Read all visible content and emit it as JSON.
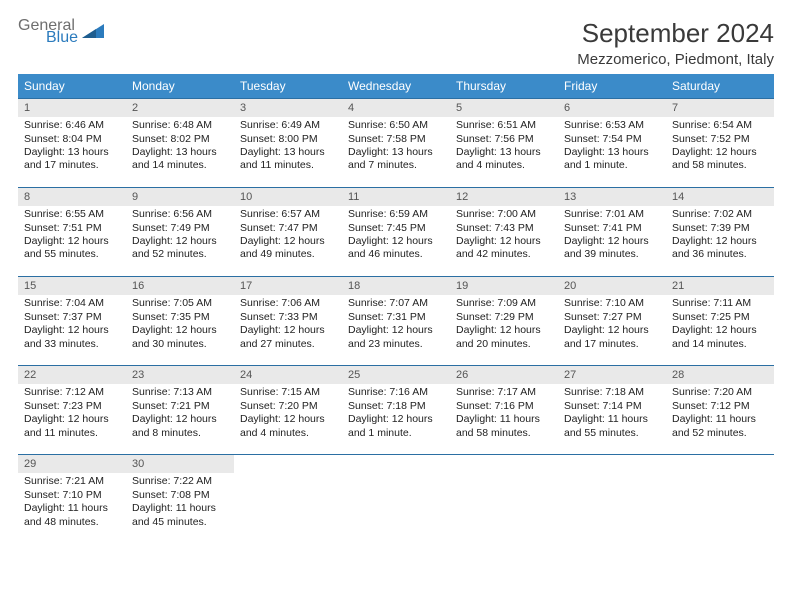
{
  "brand": {
    "word1": "General",
    "word2": "Blue"
  },
  "title": "September 2024",
  "location": "Mezzomerico, Piedmont, Italy",
  "colors": {
    "header_bg": "#3b8bc9",
    "header_text": "#ffffff",
    "daynum_bg": "#e9e9e9",
    "cell_border": "#2b6fa3",
    "logo_gray": "#6e6e6e",
    "logo_blue": "#2b7bbd",
    "page_bg": "#ffffff",
    "text": "#222222"
  },
  "weekday_labels": [
    "Sunday",
    "Monday",
    "Tuesday",
    "Wednesday",
    "Thursday",
    "Friday",
    "Saturday"
  ],
  "weeks": [
    [
      {
        "n": "1",
        "sr": "Sunrise: 6:46 AM",
        "ss": "Sunset: 8:04 PM",
        "d1": "Daylight: 13 hours",
        "d2": "and 17 minutes."
      },
      {
        "n": "2",
        "sr": "Sunrise: 6:48 AM",
        "ss": "Sunset: 8:02 PM",
        "d1": "Daylight: 13 hours",
        "d2": "and 14 minutes."
      },
      {
        "n": "3",
        "sr": "Sunrise: 6:49 AM",
        "ss": "Sunset: 8:00 PM",
        "d1": "Daylight: 13 hours",
        "d2": "and 11 minutes."
      },
      {
        "n": "4",
        "sr": "Sunrise: 6:50 AM",
        "ss": "Sunset: 7:58 PM",
        "d1": "Daylight: 13 hours",
        "d2": "and 7 minutes."
      },
      {
        "n": "5",
        "sr": "Sunrise: 6:51 AM",
        "ss": "Sunset: 7:56 PM",
        "d1": "Daylight: 13 hours",
        "d2": "and 4 minutes."
      },
      {
        "n": "6",
        "sr": "Sunrise: 6:53 AM",
        "ss": "Sunset: 7:54 PM",
        "d1": "Daylight: 13 hours",
        "d2": "and 1 minute."
      },
      {
        "n": "7",
        "sr": "Sunrise: 6:54 AM",
        "ss": "Sunset: 7:52 PM",
        "d1": "Daylight: 12 hours",
        "d2": "and 58 minutes."
      }
    ],
    [
      {
        "n": "8",
        "sr": "Sunrise: 6:55 AM",
        "ss": "Sunset: 7:51 PM",
        "d1": "Daylight: 12 hours",
        "d2": "and 55 minutes."
      },
      {
        "n": "9",
        "sr": "Sunrise: 6:56 AM",
        "ss": "Sunset: 7:49 PM",
        "d1": "Daylight: 12 hours",
        "d2": "and 52 minutes."
      },
      {
        "n": "10",
        "sr": "Sunrise: 6:57 AM",
        "ss": "Sunset: 7:47 PM",
        "d1": "Daylight: 12 hours",
        "d2": "and 49 minutes."
      },
      {
        "n": "11",
        "sr": "Sunrise: 6:59 AM",
        "ss": "Sunset: 7:45 PM",
        "d1": "Daylight: 12 hours",
        "d2": "and 46 minutes."
      },
      {
        "n": "12",
        "sr": "Sunrise: 7:00 AM",
        "ss": "Sunset: 7:43 PM",
        "d1": "Daylight: 12 hours",
        "d2": "and 42 minutes."
      },
      {
        "n": "13",
        "sr": "Sunrise: 7:01 AM",
        "ss": "Sunset: 7:41 PM",
        "d1": "Daylight: 12 hours",
        "d2": "and 39 minutes."
      },
      {
        "n": "14",
        "sr": "Sunrise: 7:02 AM",
        "ss": "Sunset: 7:39 PM",
        "d1": "Daylight: 12 hours",
        "d2": "and 36 minutes."
      }
    ],
    [
      {
        "n": "15",
        "sr": "Sunrise: 7:04 AM",
        "ss": "Sunset: 7:37 PM",
        "d1": "Daylight: 12 hours",
        "d2": "and 33 minutes."
      },
      {
        "n": "16",
        "sr": "Sunrise: 7:05 AM",
        "ss": "Sunset: 7:35 PM",
        "d1": "Daylight: 12 hours",
        "d2": "and 30 minutes."
      },
      {
        "n": "17",
        "sr": "Sunrise: 7:06 AM",
        "ss": "Sunset: 7:33 PM",
        "d1": "Daylight: 12 hours",
        "d2": "and 27 minutes."
      },
      {
        "n": "18",
        "sr": "Sunrise: 7:07 AM",
        "ss": "Sunset: 7:31 PM",
        "d1": "Daylight: 12 hours",
        "d2": "and 23 minutes."
      },
      {
        "n": "19",
        "sr": "Sunrise: 7:09 AM",
        "ss": "Sunset: 7:29 PM",
        "d1": "Daylight: 12 hours",
        "d2": "and 20 minutes."
      },
      {
        "n": "20",
        "sr": "Sunrise: 7:10 AM",
        "ss": "Sunset: 7:27 PM",
        "d1": "Daylight: 12 hours",
        "d2": "and 17 minutes."
      },
      {
        "n": "21",
        "sr": "Sunrise: 7:11 AM",
        "ss": "Sunset: 7:25 PM",
        "d1": "Daylight: 12 hours",
        "d2": "and 14 minutes."
      }
    ],
    [
      {
        "n": "22",
        "sr": "Sunrise: 7:12 AM",
        "ss": "Sunset: 7:23 PM",
        "d1": "Daylight: 12 hours",
        "d2": "and 11 minutes."
      },
      {
        "n": "23",
        "sr": "Sunrise: 7:13 AM",
        "ss": "Sunset: 7:21 PM",
        "d1": "Daylight: 12 hours",
        "d2": "and 8 minutes."
      },
      {
        "n": "24",
        "sr": "Sunrise: 7:15 AM",
        "ss": "Sunset: 7:20 PM",
        "d1": "Daylight: 12 hours",
        "d2": "and 4 minutes."
      },
      {
        "n": "25",
        "sr": "Sunrise: 7:16 AM",
        "ss": "Sunset: 7:18 PM",
        "d1": "Daylight: 12 hours",
        "d2": "and 1 minute."
      },
      {
        "n": "26",
        "sr": "Sunrise: 7:17 AM",
        "ss": "Sunset: 7:16 PM",
        "d1": "Daylight: 11 hours",
        "d2": "and 58 minutes."
      },
      {
        "n": "27",
        "sr": "Sunrise: 7:18 AM",
        "ss": "Sunset: 7:14 PM",
        "d1": "Daylight: 11 hours",
        "d2": "and 55 minutes."
      },
      {
        "n": "28",
        "sr": "Sunrise: 7:20 AM",
        "ss": "Sunset: 7:12 PM",
        "d1": "Daylight: 11 hours",
        "d2": "and 52 minutes."
      }
    ],
    [
      {
        "n": "29",
        "sr": "Sunrise: 7:21 AM",
        "ss": "Sunset: 7:10 PM",
        "d1": "Daylight: 11 hours",
        "d2": "and 48 minutes."
      },
      {
        "n": "30",
        "sr": "Sunrise: 7:22 AM",
        "ss": "Sunset: 7:08 PM",
        "d1": "Daylight: 11 hours",
        "d2": "and 45 minutes."
      },
      null,
      null,
      null,
      null,
      null
    ]
  ]
}
